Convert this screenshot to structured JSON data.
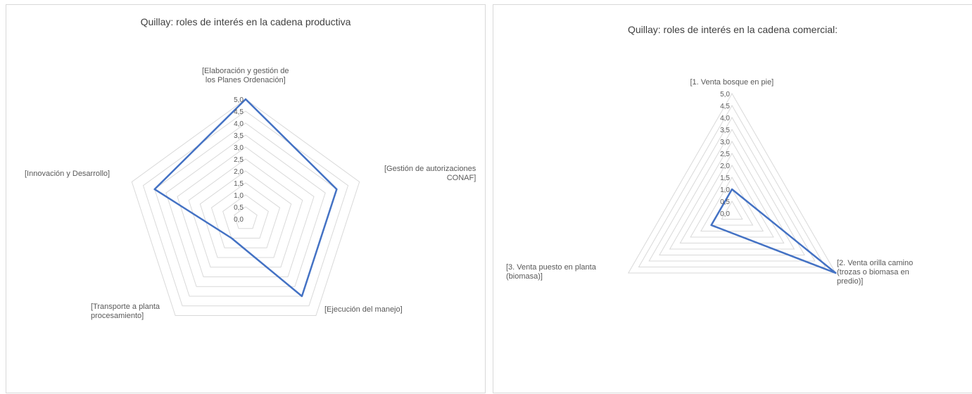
{
  "chart_data": [
    {
      "type": "radar",
      "title": "Quillay: roles de interés en la cadena productiva",
      "categories": [
        [
          "[Elaboración  y gestión de",
          "los Planes Ordenación]"
        ],
        [
          "[Gestión de autorizaciones",
          "CONAF]"
        ],
        [
          "[Ejecución del manejo]"
        ],
        [
          "[Transporte a planta",
          "procesamiento]"
        ],
        [
          "[Innovación y Desarrollo]"
        ]
      ],
      "values": [
        5.0,
        4.0,
        4.0,
        1.0,
        4.0
      ],
      "rmax": 5.0,
      "ticks": [
        "0,0",
        "0,5",
        "1,0",
        "1,5",
        "2,0",
        "2,5",
        "3,0",
        "3,5",
        "4,0",
        "4,5",
        "5,0"
      ],
      "series_color": "#4472c4",
      "grid_color": "#d9d9d9"
    },
    {
      "type": "radar",
      "title": "Quillay:  roles de interés en la cadena comercial:",
      "categories": [
        [
          "[1. Venta bosque en pie]"
        ],
        [
          "[2. Venta orilla camino",
          "(trozas o biomasa en",
          "predio)]"
        ],
        [
          "[3. Venta puesto en planta",
          "(biomasa)]"
        ]
      ],
      "values": [
        1.0,
        5.0,
        1.0
      ],
      "rmax": 5.0,
      "ticks": [
        "0,0",
        "0,5",
        "1,0",
        "1,5",
        "2,0",
        "2,5",
        "3,0",
        "3,5",
        "4,0",
        "4,5",
        "5,0"
      ],
      "series_color": "#4472c4",
      "grid_color": "#d9d9d9"
    }
  ]
}
